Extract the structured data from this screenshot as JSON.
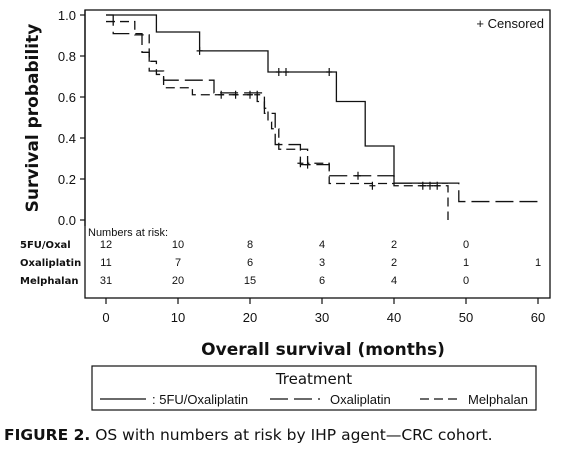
{
  "chart_data": {
    "type": "line",
    "subtype": "kaplan-meier step",
    "xlabel": "Overall survival (months)",
    "ylabel": "Survival probability",
    "xlim": [
      0,
      60
    ],
    "ylim": [
      0,
      1.0
    ],
    "xticks": [
      "0",
      "10",
      "20",
      "30",
      "40",
      "50",
      "60"
    ],
    "yticks": [
      "0.0",
      "0.2",
      "0.4",
      "0.6",
      "0.8",
      "1.0"
    ],
    "censored_legend": "+ Censored",
    "series": [
      {
        "name": ": 5FU/Oxaliplatin",
        "dash": "solid",
        "steps": [
          [
            0,
            1.0
          ],
          [
            7,
            0.917
          ],
          [
            13,
            0.825
          ],
          [
            22.5,
            0.722
          ],
          [
            32,
            0.578
          ],
          [
            36,
            0.361
          ],
          [
            40,
            0.18
          ],
          [
            47.5,
            0.18
          ]
        ],
        "censored": [
          [
            13,
            0.825
          ],
          [
            24,
            0.722
          ],
          [
            25,
            0.722
          ],
          [
            31,
            0.722
          ]
        ]
      },
      {
        "name": "Oxaliplatin",
        "dash": "long",
        "steps": [
          [
            0,
            1.0
          ],
          [
            1,
            0.909
          ],
          [
            5,
            0.818
          ],
          [
            6,
            0.727
          ],
          [
            8,
            0.682
          ],
          [
            15,
            0.62
          ],
          [
            22,
            0.52
          ],
          [
            23.5,
            0.368
          ],
          [
            27,
            0.27
          ],
          [
            31,
            0.216
          ],
          [
            40,
            0.18
          ],
          [
            48,
            0.18
          ],
          [
            49,
            0.09
          ],
          [
            60,
            0.09
          ]
        ],
        "censored": [
          [
            28,
            0.27
          ],
          [
            35,
            0.216
          ]
        ]
      },
      {
        "name": "Melphalan",
        "dash": "short",
        "steps": [
          [
            0,
            0.968
          ],
          [
            4,
            0.903
          ],
          [
            6,
            0.774
          ],
          [
            7,
            0.71
          ],
          [
            8,
            0.645
          ],
          [
            12,
            0.611
          ],
          [
            21,
            0.578
          ],
          [
            22,
            0.545
          ],
          [
            22.5,
            0.478
          ],
          [
            23,
            0.445
          ],
          [
            24,
            0.345
          ],
          [
            28,
            0.277
          ],
          [
            31,
            0.178
          ],
          [
            40,
            0.167
          ],
          [
            47,
            0.167
          ],
          [
            47.5,
            0.0
          ]
        ],
        "censored": [
          [
            16,
            0.611
          ],
          [
            18,
            0.611
          ],
          [
            20,
            0.611
          ],
          [
            21,
            0.611
          ],
          [
            27,
            0.277
          ],
          [
            37,
            0.167
          ],
          [
            44,
            0.167
          ],
          [
            45,
            0.167
          ],
          [
            46,
            0.167
          ]
        ]
      }
    ],
    "risk_table": {
      "header": "Numbers at risk:",
      "times": [
        0,
        10,
        20,
        30,
        40,
        50,
        60
      ],
      "rows": [
        {
          "name": "5FU/Oxal",
          "values": [
            "12",
            "10",
            "8",
            "4",
            "2",
            "0",
            ""
          ]
        },
        {
          "name": "Oxaliplatin",
          "values": [
            "11",
            "7",
            "6",
            "3",
            "2",
            "1",
            "1"
          ]
        },
        {
          "name": "Melphalan",
          "values": [
            "31",
            "20",
            "15",
            "6",
            "4",
            "0",
            ""
          ]
        }
      ]
    },
    "legend": {
      "title": "Treatment",
      "position": "bottom"
    }
  },
  "caption": {
    "label": "FIGURE 2.",
    "text": " OS with numbers at risk by IHP agent—CRC cohort."
  }
}
